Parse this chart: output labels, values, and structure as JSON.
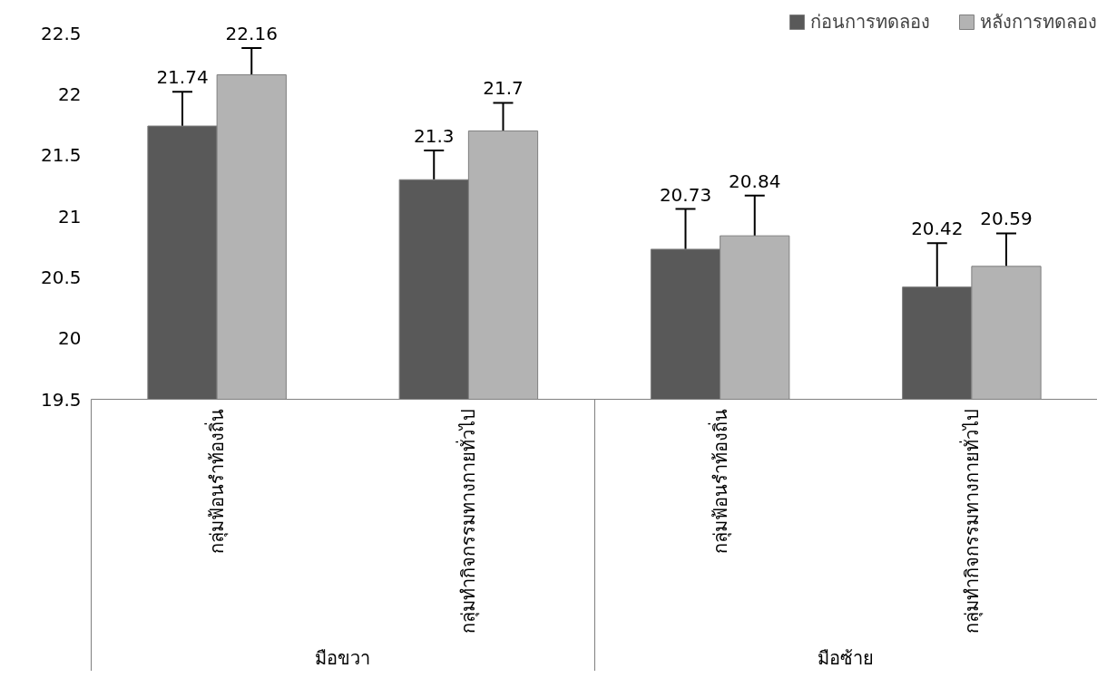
{
  "chart_data": {
    "type": "bar",
    "categories": [
      "กลุ่มฟ้อนรำท้องถิ่น",
      "กลุ่มทำกิจกรรมทางกายทั่วไป",
      "กลุ่มฟ้อนรำท้องถิ่น",
      "กลุ่มทำกิจกรรมทางกายทั่วไป"
    ],
    "series": [
      {
        "name": "ก่อนการทดลอง",
        "color": "#595959",
        "values": [
          21.74,
          21.3,
          20.73,
          20.42
        ],
        "errors": [
          0.28,
          0.24,
          0.33,
          0.36
        ]
      },
      {
        "name": "หลังการทดลอง",
        "color": "#b3b3b3",
        "values": [
          22.16,
          21.7,
          20.84,
          20.59
        ],
        "errors": [
          0.22,
          0.23,
          0.33,
          0.27
        ]
      }
    ],
    "annotations": [
      "มือขวา",
      "มือซ้าย"
    ],
    "ylim": [
      19.5,
      22.5
    ],
    "yticks": [
      19.5,
      20,
      20.5,
      21,
      21.5,
      22,
      22.5
    ],
    "data_labels": true,
    "legend": "top right",
    "grid": false
  }
}
